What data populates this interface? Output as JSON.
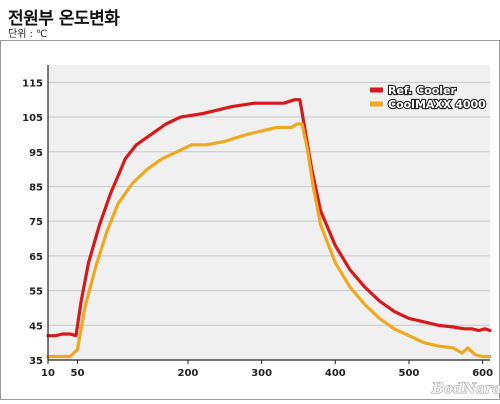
{
  "header": {
    "title": "전원부 온도변화",
    "unit": "단위 : ℃"
  },
  "watermark": "BodNara",
  "colors": {
    "background": "#ffffff",
    "plot_area": "#f0f0f0",
    "grid": "#c8c8c8",
    "axis": "#222222",
    "ref_cooler": "#d7191c",
    "coolmaxx": "#f0a81e"
  },
  "chart_data": {
    "type": "line",
    "xlim": [
      10,
      610
    ],
    "ylim": [
      35,
      120
    ],
    "x_ticks": [
      10,
      50,
      200,
      300,
      400,
      500,
      600
    ],
    "y_ticks": [
      35,
      45,
      55,
      65,
      75,
      85,
      95,
      105,
      115
    ],
    "grid": "horizontal",
    "legend_position": "top-right",
    "series": [
      {
        "name": "Ref. Cooler",
        "color": "#d7191c",
        "points": [
          [
            10,
            42
          ],
          [
            20,
            42
          ],
          [
            30,
            42.5
          ],
          [
            40,
            42.5
          ],
          [
            48,
            42
          ],
          [
            55,
            52
          ],
          [
            65,
            63
          ],
          [
            80,
            74
          ],
          [
            95,
            83
          ],
          [
            105,
            88
          ],
          [
            115,
            93
          ],
          [
            130,
            97
          ],
          [
            150,
            100
          ],
          [
            170,
            103
          ],
          [
            190,
            105
          ],
          [
            220,
            106
          ],
          [
            240,
            107
          ],
          [
            260,
            108
          ],
          [
            290,
            109
          ],
          [
            310,
            109
          ],
          [
            330,
            109
          ],
          [
            345,
            110
          ],
          [
            352,
            110
          ],
          [
            360,
            100
          ],
          [
            368,
            90
          ],
          [
            380,
            78
          ],
          [
            400,
            68
          ],
          [
            420,
            61
          ],
          [
            440,
            56
          ],
          [
            460,
            52
          ],
          [
            480,
            49
          ],
          [
            500,
            47
          ],
          [
            520,
            46
          ],
          [
            540,
            45
          ],
          [
            560,
            44.5
          ],
          [
            575,
            44
          ],
          [
            585,
            44
          ],
          [
            595,
            43.5
          ],
          [
            603,
            44
          ],
          [
            610,
            43.5
          ]
        ]
      },
      {
        "name": "CoolMAXX 4000",
        "color": "#f0a81e",
        "points": [
          [
            10,
            36
          ],
          [
            20,
            36
          ],
          [
            30,
            36
          ],
          [
            40,
            36
          ],
          [
            50,
            38
          ],
          [
            60,
            50
          ],
          [
            75,
            62
          ],
          [
            90,
            72
          ],
          [
            105,
            80
          ],
          [
            125,
            86
          ],
          [
            145,
            90
          ],
          [
            165,
            93
          ],
          [
            185,
            95
          ],
          [
            205,
            97
          ],
          [
            225,
            97
          ],
          [
            250,
            98
          ],
          [
            280,
            100
          ],
          [
            300,
            101
          ],
          [
            320,
            102
          ],
          [
            340,
            102
          ],
          [
            348,
            103
          ],
          [
            355,
            103
          ],
          [
            362,
            96
          ],
          [
            370,
            85
          ],
          [
            380,
            74
          ],
          [
            400,
            63
          ],
          [
            420,
            56
          ],
          [
            440,
            51
          ],
          [
            460,
            47
          ],
          [
            480,
            44
          ],
          [
            500,
            42
          ],
          [
            520,
            40
          ],
          [
            540,
            39
          ],
          [
            560,
            38.5
          ],
          [
            572,
            37
          ],
          [
            580,
            38.5
          ],
          [
            590,
            36.5
          ],
          [
            600,
            36
          ],
          [
            610,
            36
          ]
        ]
      }
    ]
  }
}
